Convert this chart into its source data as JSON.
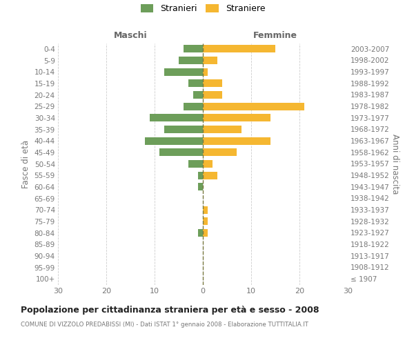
{
  "age_groups": [
    "100+",
    "95-99",
    "90-94",
    "85-89",
    "80-84",
    "75-79",
    "70-74",
    "65-69",
    "60-64",
    "55-59",
    "50-54",
    "45-49",
    "40-44",
    "35-39",
    "30-34",
    "25-29",
    "20-24",
    "15-19",
    "10-14",
    "5-9",
    "0-4"
  ],
  "birth_years": [
    "≤ 1907",
    "1908-1912",
    "1913-1917",
    "1918-1922",
    "1923-1927",
    "1928-1932",
    "1933-1937",
    "1938-1942",
    "1943-1947",
    "1948-1952",
    "1953-1957",
    "1958-1962",
    "1963-1967",
    "1968-1972",
    "1973-1977",
    "1978-1982",
    "1983-1987",
    "1988-1992",
    "1993-1997",
    "1998-2002",
    "2003-2007"
  ],
  "maschi": [
    0,
    0,
    0,
    0,
    1,
    0,
    0,
    0,
    1,
    1,
    3,
    9,
    12,
    8,
    11,
    4,
    2,
    3,
    8,
    5,
    4
  ],
  "femmine": [
    0,
    0,
    0,
    0,
    1,
    1,
    1,
    0,
    0,
    3,
    2,
    7,
    14,
    8,
    14,
    21,
    4,
    4,
    1,
    3,
    15
  ],
  "male_color": "#6d9e5a",
  "female_color": "#f5b731",
  "center_line_color": "#7a7a40",
  "grid_color": "#cccccc",
  "bg_color": "#ffffff",
  "title": "Popolazione per cittadinanza straniera per età e sesso - 2008",
  "subtitle": "COMUNE DI VIZZOLO PREDABISSI (MI) - Dati ISTAT 1° gennaio 2008 - Elaborazione TUTTITALIA.IT",
  "ylabel_left": "Fasce di età",
  "ylabel_right": "Anni di nascita",
  "xlabel_left": "Maschi",
  "xlabel_right": "Femmine",
  "legend_male": "Stranieri",
  "legend_female": "Straniere",
  "xlim": 30,
  "bar_height": 0.65
}
